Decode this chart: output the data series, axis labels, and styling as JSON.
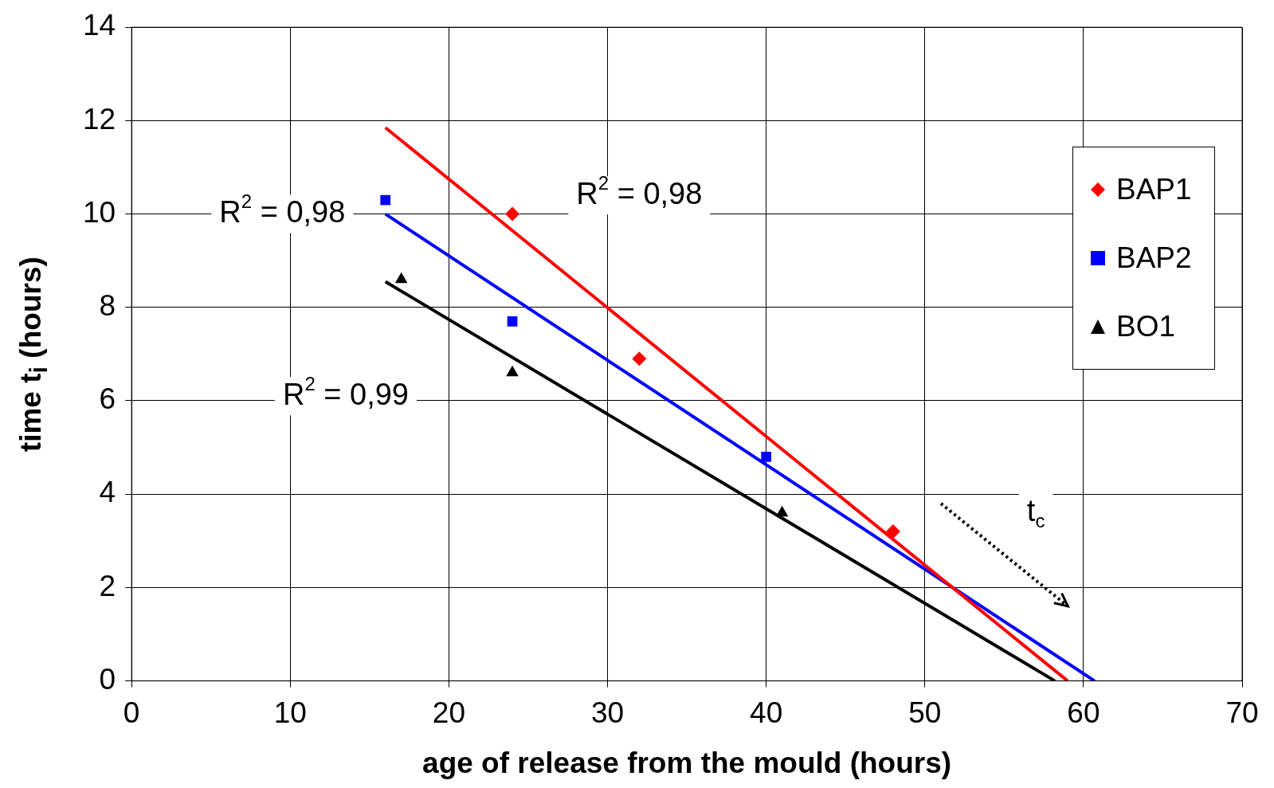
{
  "chart_data": {
    "type": "scatter",
    "xlabel": "age of release from the mould (hours)",
    "ylabel": "time t$_{i}$ (hours)",
    "xlim": [
      0,
      70
    ],
    "xticks": [
      0,
      10,
      20,
      30,
      40,
      50,
      60,
      70
    ],
    "ylim": [
      0,
      14
    ],
    "yticks": [
      0,
      2,
      4,
      6,
      8,
      10,
      12,
      14
    ],
    "grid": true,
    "legend": "top right",
    "series": [
      {
        "name": "BAP1",
        "color": "#ff0000",
        "marker": "diamond",
        "x": [
          24,
          32,
          48
        ],
        "values": [
          10,
          6.9,
          3.2
        ]
      },
      {
        "name": "BAP2",
        "color": "#0000ff",
        "marker": "square",
        "x": [
          16,
          24,
          40
        ],
        "values": [
          10.3,
          7.7,
          4.8
        ]
      },
      {
        "name": "BO1",
        "color": "#000000",
        "marker": "triangle",
        "x": [
          17,
          24,
          41
        ],
        "values": [
          8.6,
          6.6,
          3.6
        ]
      },
      {
        "type": "line",
        "color": "#ff0000",
        "marker": "none",
        "x": [
          16,
          59
        ],
        "values": [
          11.85,
          0
        ]
      },
      {
        "type": "line",
        "color": "#0000ff",
        "marker": "none",
        "x": [
          16,
          60.7
        ],
        "values": [
          10,
          0
        ]
      },
      {
        "type": "line",
        "color": "#000000",
        "marker": "none",
        "x": [
          16,
          58.2
        ],
        "values": [
          8.55,
          0
        ]
      }
    ],
    "annotations": [
      "R$^{2}$ = 0,98",
      "R$^{2}$ = 0,98",
      "R$^{2}$ = 0,99",
      "t$_{c}$"
    ]
  }
}
